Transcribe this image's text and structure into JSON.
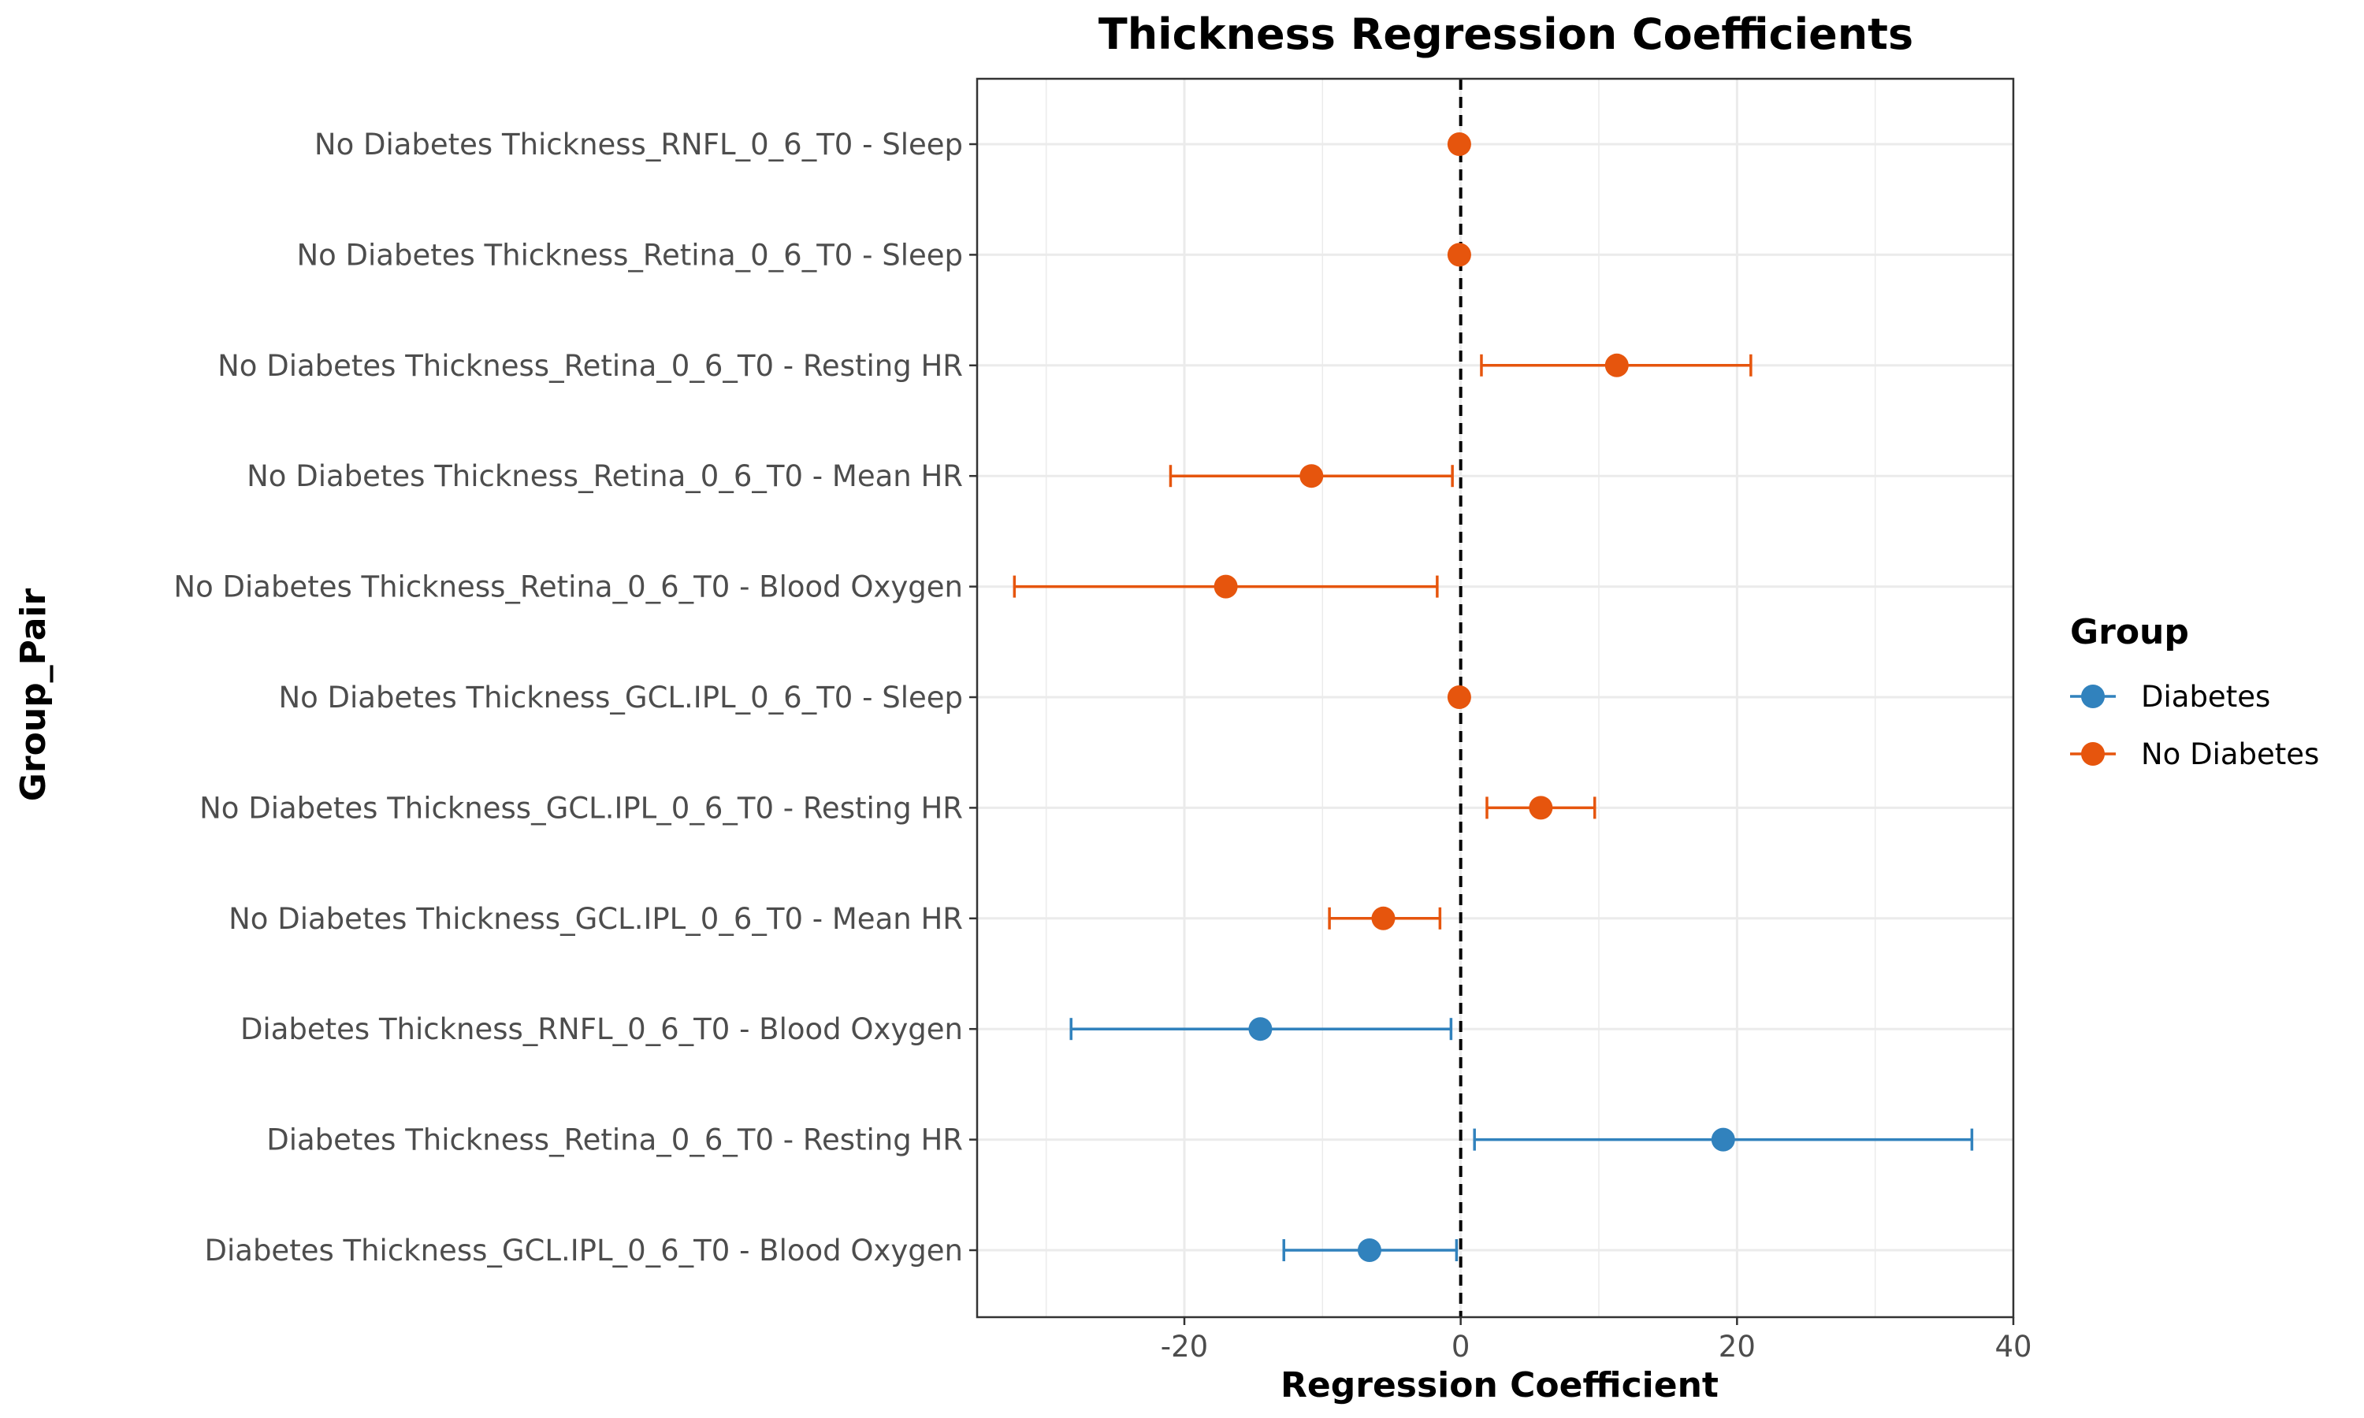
{
  "chart_data": {
    "type": "scatter",
    "subtype": "forest-plot-with-error-bars",
    "title": "Thickness Regression Coefficients",
    "xlabel": "Regression Coefficient",
    "ylabel": "Group_Pair",
    "xlim": [
      -35,
      40
    ],
    "xticks": [
      -20,
      0,
      20,
      40
    ],
    "xtick_labels": [
      "-20",
      "0",
      "20",
      "40"
    ],
    "reference_line": {
      "x": 0,
      "style": "dashed",
      "color": "#000000"
    },
    "grid": true,
    "legend": {
      "title": "Group",
      "position": "right",
      "entries": [
        {
          "name": "Diabetes",
          "color": "#3182bd"
        },
        {
          "name": "No Diabetes",
          "color": "#e6550d"
        }
      ]
    },
    "categories": [
      "No Diabetes Thickness_RNFL_0_6_T0 - Sleep",
      "No Diabetes Thickness_Retina_0_6_T0 - Sleep",
      "No Diabetes Thickness_Retina_0_6_T0 - Resting HR",
      "No Diabetes Thickness_Retina_0_6_T0 - Mean HR",
      "No Diabetes Thickness_Retina_0_6_T0 - Blood Oxygen",
      "No Diabetes Thickness_GCL.IPL_0_6_T0 - Sleep",
      "No Diabetes Thickness_GCL.IPL_0_6_T0 - Resting HR",
      "No Diabetes Thickness_GCL.IPL_0_6_T0 - Mean HR",
      "Diabetes Thickness_RNFL_0_6_T0 - Blood Oxygen",
      "Diabetes Thickness_Retina_0_6_T0 - Resting HR",
      "Diabetes Thickness_GCL.IPL_0_6_T0 - Blood Oxygen"
    ],
    "points": [
      {
        "group": "No Diabetes",
        "estimate": -0.1,
        "lower": -0.1,
        "upper": -0.1
      },
      {
        "group": "No Diabetes",
        "estimate": -0.1,
        "lower": -0.1,
        "upper": -0.1
      },
      {
        "group": "No Diabetes",
        "estimate": 11.3,
        "lower": 1.5,
        "upper": 21.0
      },
      {
        "group": "No Diabetes",
        "estimate": -10.8,
        "lower": -21.0,
        "upper": -0.6
      },
      {
        "group": "No Diabetes",
        "estimate": -17.0,
        "lower": -32.3,
        "upper": -1.7
      },
      {
        "group": "No Diabetes",
        "estimate": -0.1,
        "lower": -0.1,
        "upper": -0.1
      },
      {
        "group": "No Diabetes",
        "estimate": 5.8,
        "lower": 1.9,
        "upper": 9.7
      },
      {
        "group": "No Diabetes",
        "estimate": -5.6,
        "lower": -9.5,
        "upper": -1.5
      },
      {
        "group": "Diabetes",
        "estimate": -14.5,
        "lower": -28.2,
        "upper": -0.7
      },
      {
        "group": "Diabetes",
        "estimate": 19.0,
        "lower": 1.0,
        "upper": 37.0
      },
      {
        "group": "Diabetes",
        "estimate": -6.6,
        "lower": -12.8,
        "upper": -0.3
      }
    ]
  }
}
